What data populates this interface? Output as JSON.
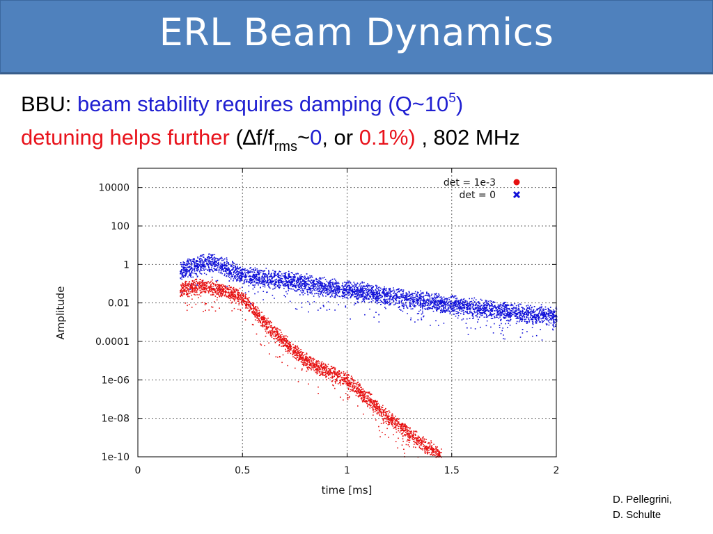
{
  "slide": {
    "title": "ERL Beam Dynamics",
    "line1": {
      "prefix": "BBU: ",
      "blue": "beam stability requires damping (Q~10",
      "sup": "5",
      "close": ")"
    },
    "line2": {
      "red": "detuning helps further",
      "p1": " (",
      "delta": "∆",
      "f": "f/f",
      "sub": "rms",
      "tilde": "~",
      "zero": "0",
      "or": ", or ",
      "pct": "0.1%)",
      "tail": " , 802 MHz"
    },
    "credit": [
      "D. Pellegrini,",
      "D. Schulte"
    ]
  },
  "colors": {
    "title_bar": "#4f81bd",
    "blue_text": "#1f1fd1",
    "red_text": "#e8121b",
    "series_red": "#e61010",
    "series_blue": "#1010d8"
  },
  "chart_data": {
    "type": "scatter",
    "xlabel": "time [ms]",
    "ylabel": "Amplitude",
    "xlim": [
      0,
      2
    ],
    "ylim_log10": [
      -10,
      5
    ],
    "y_scale": "log",
    "grid": true,
    "legend_position": "top-right",
    "x_ticks": [
      "0",
      "0.5",
      "1",
      "1.5",
      "2"
    ],
    "y_ticks": [
      "1e-10",
      "1e-08",
      "1e-06",
      "0.0001",
      "0.01",
      "1",
      "100",
      "10000"
    ],
    "series": [
      {
        "name": "det = 1e-3",
        "color": "#e61010",
        "marker": "circle",
        "points": [
          [
            0.2,
            0.05
          ],
          [
            0.3,
            0.08
          ],
          [
            0.4,
            0.05
          ],
          [
            0.5,
            0.02
          ],
          [
            0.6,
            0.001
          ],
          [
            0.8,
            1e-05
          ],
          [
            1.0,
            1e-06
          ],
          [
            1.2,
            1e-08
          ],
          [
            1.45,
            1e-10
          ]
        ]
      },
      {
        "name": "det = 0",
        "color": "#1010d8",
        "marker": "x",
        "points": [
          [
            0.2,
            0.5
          ],
          [
            0.35,
            1.5
          ],
          [
            0.5,
            0.3
          ],
          [
            1.0,
            0.05
          ],
          [
            1.5,
            0.008
          ],
          [
            2.0,
            0.002
          ]
        ]
      }
    ]
  }
}
